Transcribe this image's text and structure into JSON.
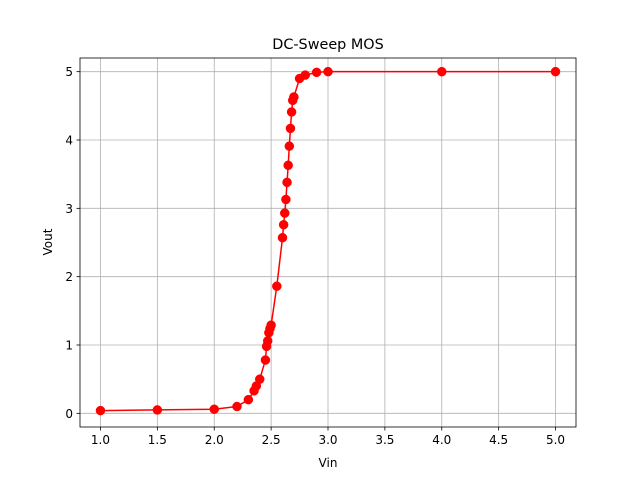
{
  "chart_data": {
    "type": "line",
    "title": "DC-Sweep MOS",
    "xlabel": "Vin",
    "ylabel": "Vout",
    "xlim": [
      0.82,
      5.18
    ],
    "ylim": [
      -0.2,
      5.2
    ],
    "xticks": [
      1.0,
      1.5,
      2.0,
      2.5,
      3.0,
      3.5,
      4.0,
      4.5,
      5.0
    ],
    "xtick_labels": [
      "1.0",
      "1.5",
      "2.0",
      "2.5",
      "3.0",
      "3.5",
      "4.0",
      "4.5",
      "5.0"
    ],
    "yticks": [
      0,
      1,
      2,
      3,
      4,
      5
    ],
    "ytick_labels": [
      "0",
      "1",
      "2",
      "3",
      "4",
      "5"
    ],
    "grid": true,
    "legend": "none",
    "series": [
      {
        "color": "#ff0000",
        "marker": "circle",
        "x": [
          1.0,
          1.5,
          2.0,
          2.2,
          2.3,
          2.35,
          2.37,
          2.4,
          2.45,
          2.46,
          2.47,
          2.48,
          2.49,
          2.5,
          2.55,
          2.6,
          2.61,
          2.62,
          2.63,
          2.64,
          2.65,
          2.66,
          2.67,
          2.68,
          2.69,
          2.7,
          2.75,
          2.8,
          2.9,
          3.0,
          4.0,
          5.0
        ],
        "y": [
          0.04,
          0.05,
          0.06,
          0.1,
          0.2,
          0.33,
          0.4,
          0.5,
          0.78,
          0.98,
          1.06,
          1.18,
          1.24,
          1.29,
          1.86,
          2.57,
          2.76,
          2.93,
          3.13,
          3.38,
          3.63,
          3.91,
          4.17,
          4.41,
          4.58,
          4.63,
          4.9,
          4.95,
          4.99,
          5.0,
          5.0,
          5.0
        ]
      }
    ]
  }
}
